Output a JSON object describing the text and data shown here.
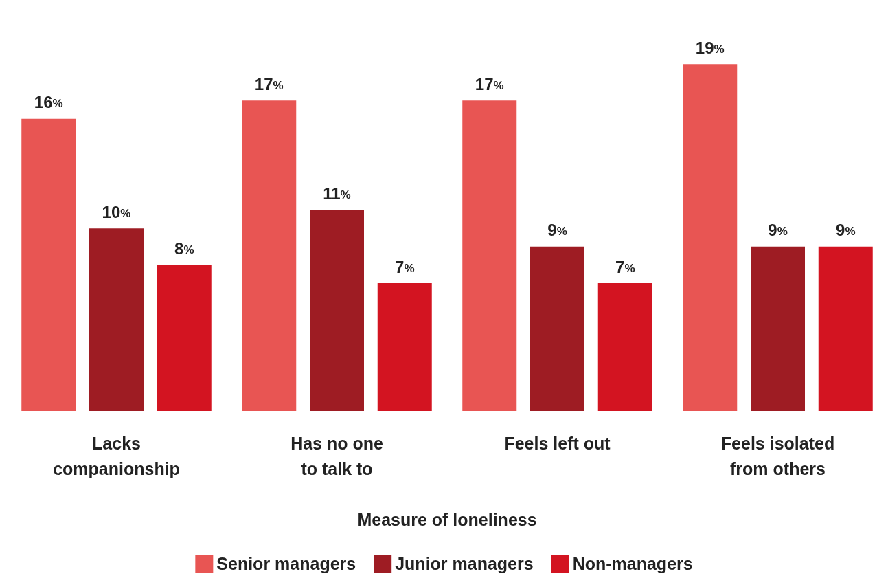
{
  "chart_data": {
    "type": "bar",
    "xlabel": "Measure of loneliness",
    "categories": [
      "Lacks\ncompanionship",
      "Has no one\nto talk to",
      "Feels left out",
      "Feels isolated\nfrom others"
    ],
    "series": [
      {
        "name": "Senior managers",
        "color": "#e85553",
        "values": [
          16,
          17,
          17,
          19
        ],
        "value_labels": [
          "16%",
          "17%",
          "17%",
          "19%"
        ]
      },
      {
        "name": "Junior managers",
        "color": "#9e1c23",
        "values": [
          10,
          11,
          9,
          9
        ],
        "value_labels": [
          "10%",
          "11%",
          "9%",
          "9%"
        ]
      },
      {
        "name": "Non-managers",
        "color": "#d31421",
        "values": [
          8,
          7,
          7,
          9
        ],
        "value_labels": [
          "8%",
          "7%",
          "7%",
          "9%"
        ]
      }
    ],
    "legend": "bottom"
  }
}
